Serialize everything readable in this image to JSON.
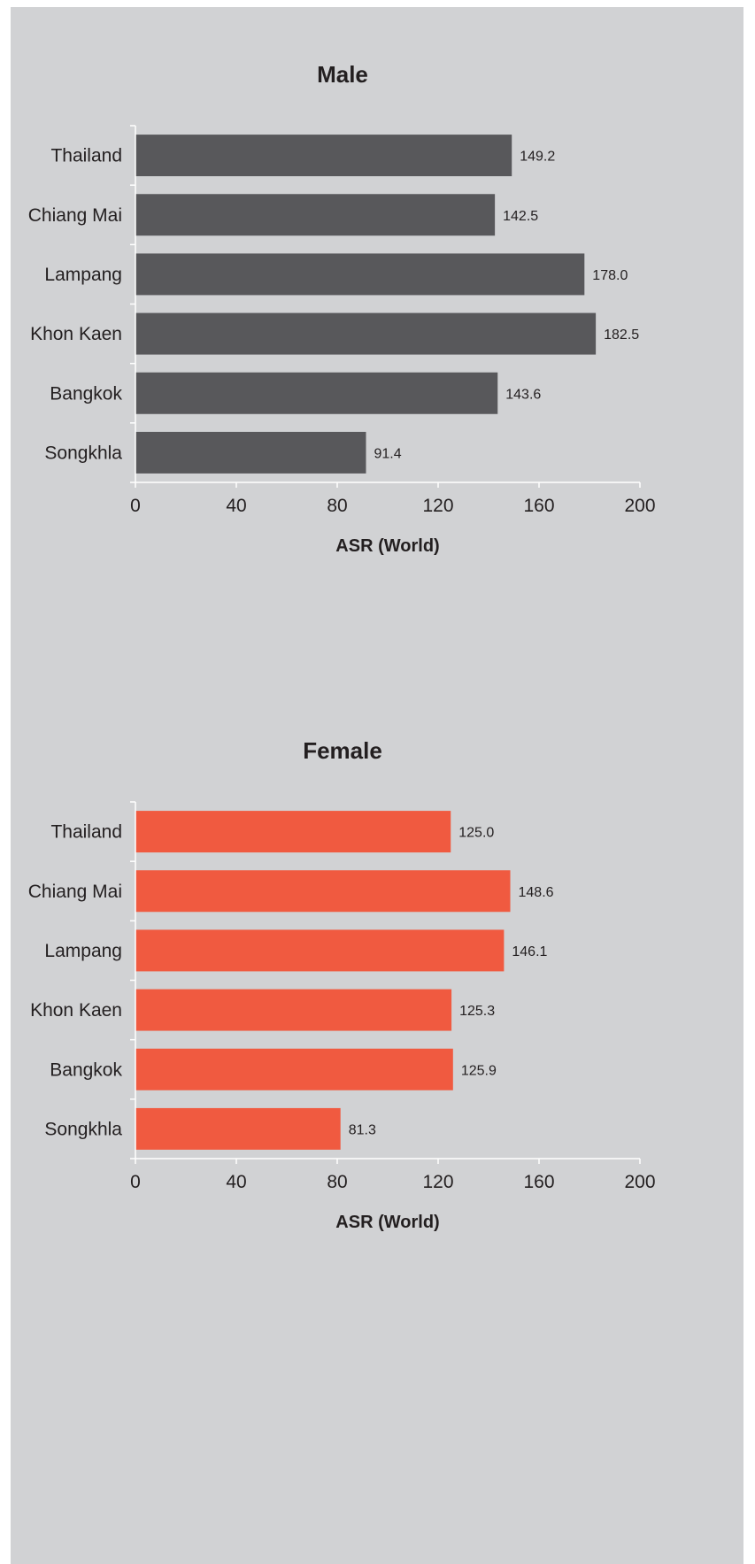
{
  "chart_data": [
    {
      "type": "bar",
      "orientation": "horizontal",
      "title": "Male",
      "xlabel": "ASR (World)",
      "ylabel": "",
      "xlim": [
        0,
        200
      ],
      "x_ticks": [
        "0",
        "40",
        "80",
        "120",
        "160",
        "200"
      ],
      "categories": [
        "Thailand",
        "Chiang Mai",
        "Lampang",
        "Khon Kaen",
        "Bangkok",
        "Songkhla"
      ],
      "values": [
        149.2,
        142.5,
        178.0,
        182.5,
        143.6,
        91.4
      ],
      "value_labels": [
        "149.2",
        "142.5",
        "178.0",
        "182.5",
        "143.6",
        "91.4"
      ],
      "bar_color": "#58585b",
      "grid": false,
      "legend": "none"
    },
    {
      "type": "bar",
      "orientation": "horizontal",
      "title": "Female",
      "xlabel": "ASR (World)",
      "ylabel": "",
      "xlim": [
        0,
        200
      ],
      "x_ticks": [
        "0",
        "40",
        "80",
        "120",
        "160",
        "200"
      ],
      "categories": [
        "Thailand",
        "Chiang Mai",
        "Lampang",
        "Khon Kaen",
        "Bangkok",
        "Songkhla"
      ],
      "values": [
        125.0,
        148.6,
        146.1,
        125.3,
        125.9,
        81.3
      ],
      "value_labels": [
        "125.0",
        "148.6",
        "146.1",
        "125.3",
        "125.9",
        "81.3"
      ],
      "bar_color": "#f05a40",
      "grid": false,
      "legend": "none"
    }
  ],
  "colors": {
    "background": "#d1d2d4",
    "axis": "#ffffff",
    "text": "#231f20"
  }
}
